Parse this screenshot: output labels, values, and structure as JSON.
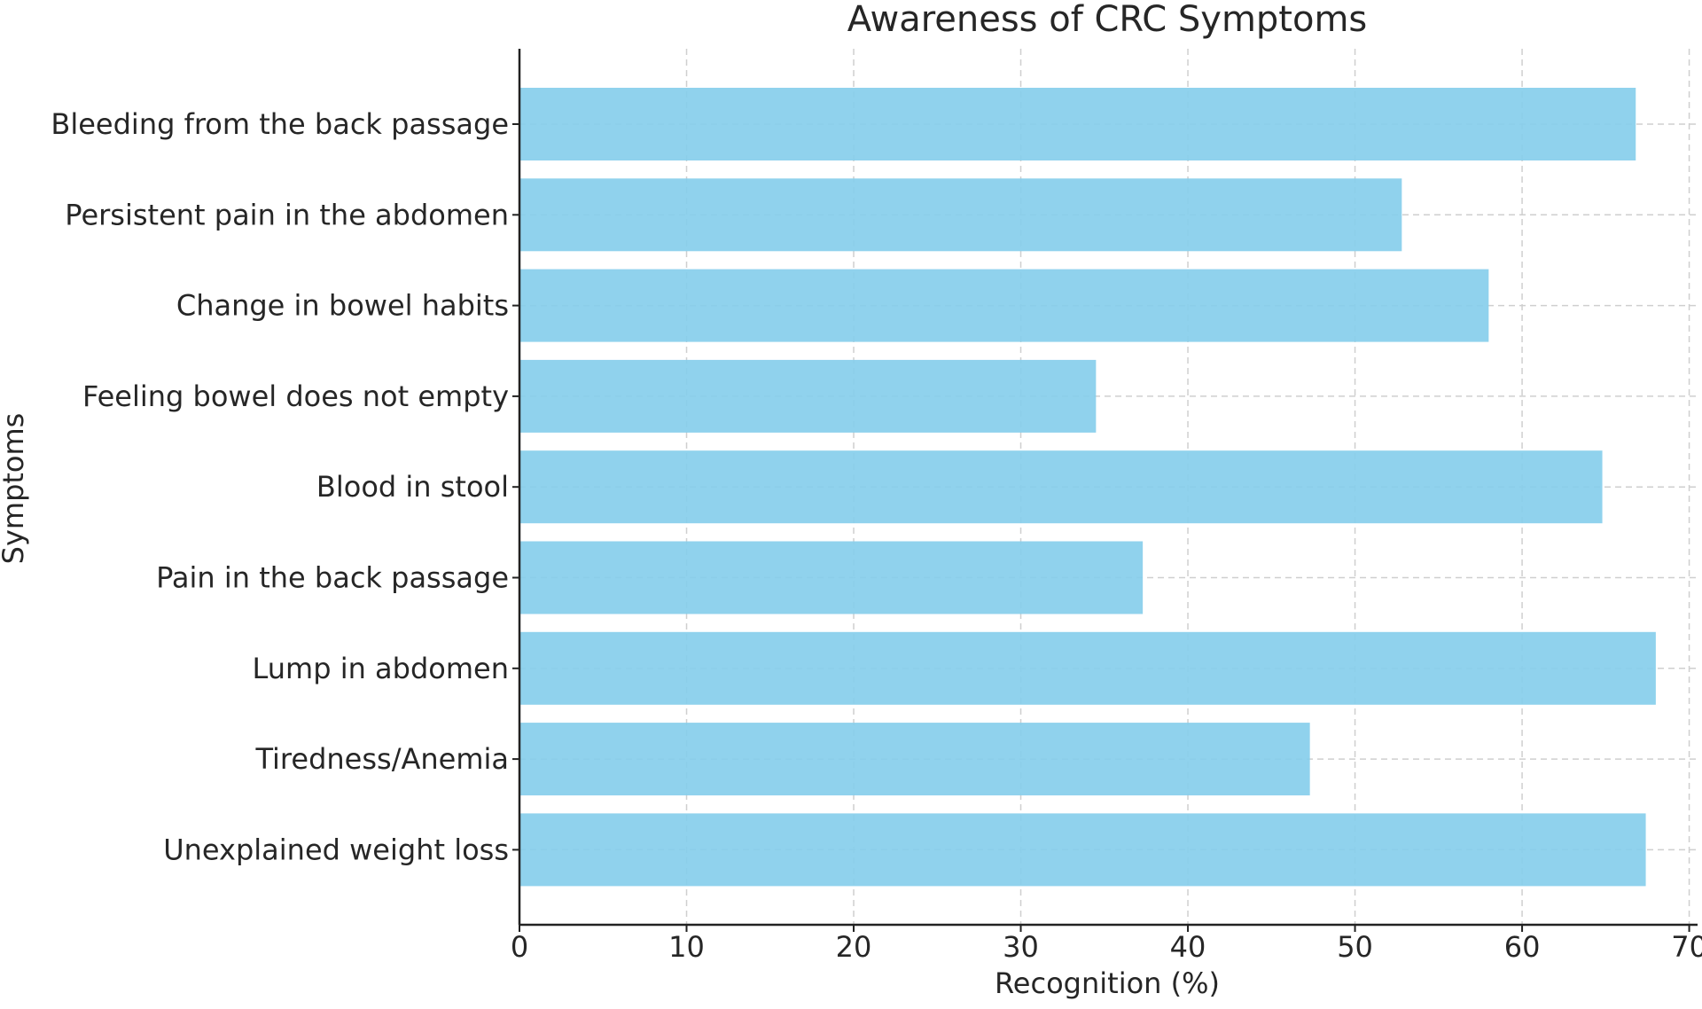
{
  "chart_data": {
    "type": "bar",
    "orientation": "horizontal",
    "title": "Awareness of CRC Symptoms",
    "xlabel": "Recognition (%)",
    "ylabel": "Symptoms",
    "categories": [
      "Bleeding from the back passage",
      "Persistent pain in the abdomen",
      "Change in bowel habits",
      "Feeling bowel does not empty",
      "Blood in stool",
      "Pain in the back passage",
      "Lump in abdomen",
      "Tiredness/Anemia",
      "Unexplained weight loss"
    ],
    "values": [
      66.8,
      52.8,
      58.0,
      34.5,
      64.8,
      37.3,
      68.0,
      47.3,
      67.4
    ],
    "xlim": [
      0,
      70.5
    ],
    "xticks": [
      0,
      10,
      20,
      30,
      40,
      50,
      60,
      70
    ],
    "grid": true,
    "bar_color": "#87ceeb"
  }
}
